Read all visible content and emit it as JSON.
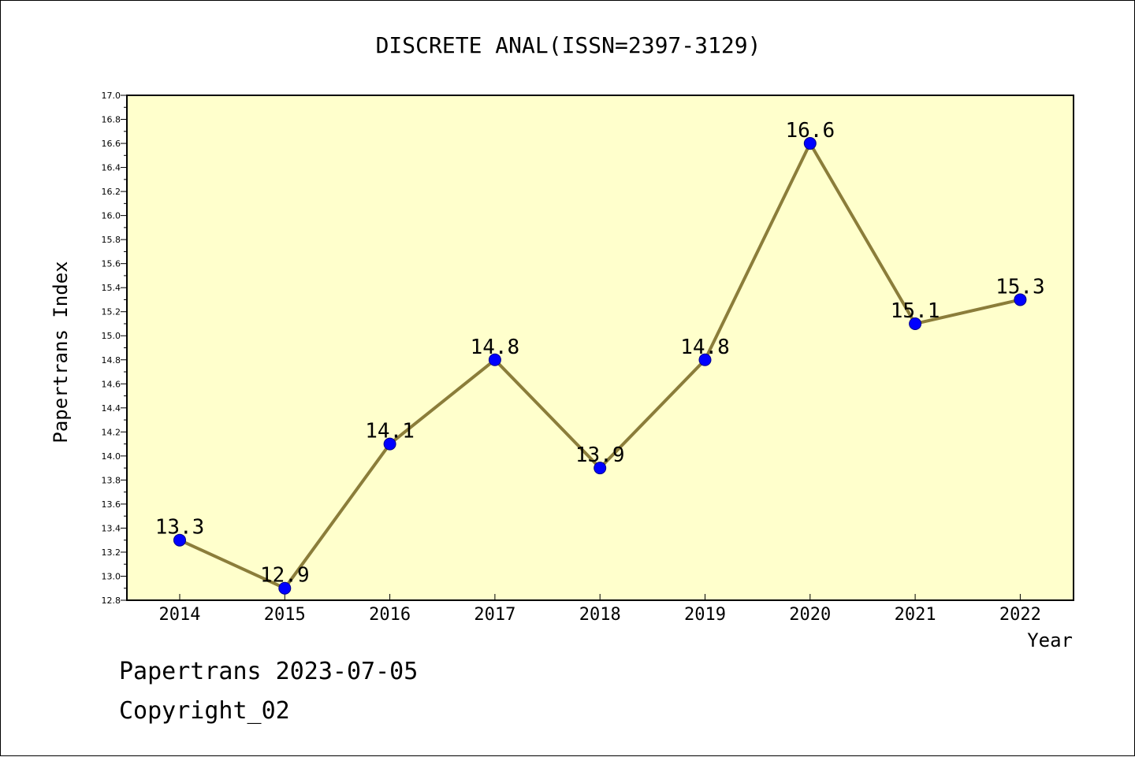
{
  "colors": {
    "plot_background": "#ffffcc",
    "line": "#8b7d3a",
    "marker": "#0000ff",
    "marker_edge": "#00008b"
  },
  "footer": {
    "line1": "Papertrans 2023-07-05",
    "line2": "Copyright_02"
  },
  "chart_data": {
    "type": "line",
    "title": "DISCRETE ANAL(ISSN=2397-3129)",
    "xlabel": "Year",
    "ylabel": "Papertrans Index",
    "categories": [
      "2014",
      "2015",
      "2016",
      "2017",
      "2018",
      "2019",
      "2020",
      "2021",
      "2022"
    ],
    "series": [
      {
        "values": [
          13.3,
          12.9,
          14.1,
          14.8,
          13.9,
          14.8,
          16.6,
          15.1,
          15.3
        ],
        "data_labels": [
          "13.3",
          "12.9",
          "14.1",
          "14.8",
          "13.9",
          "14.8",
          "16.6",
          "15.1",
          "15.3"
        ]
      }
    ],
    "ylim": [
      12.8,
      17.0
    ],
    "yticks": [
      "12.8",
      "13.0",
      "13.2",
      "13.4",
      "13.6",
      "13.8",
      "14.0",
      "14.2",
      "14.4",
      "14.6",
      "14.8",
      "15.0",
      "15.2",
      "15.4",
      "15.6",
      "15.8",
      "16.0",
      "16.2",
      "16.4",
      "16.6",
      "16.8",
      "17.0"
    ],
    "grid": false,
    "legend": "none"
  }
}
